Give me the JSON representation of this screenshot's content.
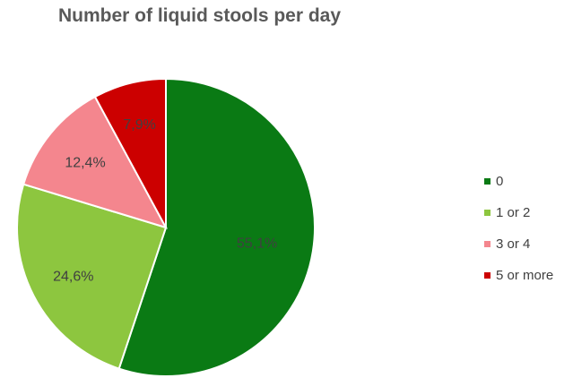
{
  "chart_data": {
    "type": "pie",
    "title": "Number of liquid stools per day",
    "categories": [
      "0",
      "1 or 2",
      "3 or 4",
      "5 or more"
    ],
    "values": [
      55.1,
      24.6,
      12.4,
      7.9
    ],
    "value_labels": [
      "55,1%",
      "24,6%",
      "12,4%",
      "7,9%"
    ],
    "colors": [
      "#0a7a14",
      "#8dc63f",
      "#f4868e",
      "#cc0000"
    ],
    "start": "12 o'clock, clockwise",
    "legend_position": "right"
  }
}
